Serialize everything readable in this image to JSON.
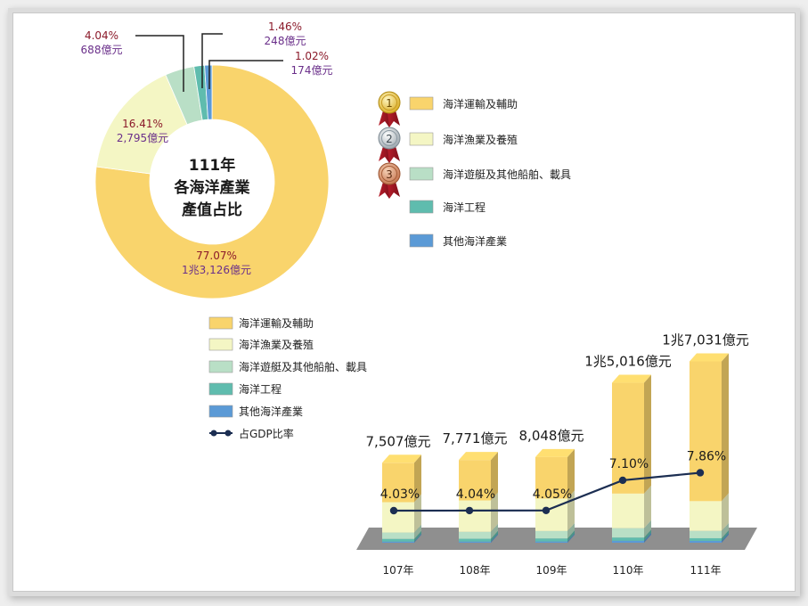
{
  "colors": {
    "transport": "#f9d46c",
    "fishery": "#f4f6c4",
    "yacht": "#b9dfc6",
    "engineering": "#5fbcae",
    "other": "#5b9ad6",
    "pct_label": "#8b1a2a",
    "val_label": "#6a2f8a",
    "line": "#1c2e52"
  },
  "pie": {
    "title": [
      "111年",
      "各海洋產業",
      "產值占比"
    ],
    "slice_labels": [
      {
        "pct": "77.07%",
        "val": "1兆3,126億元"
      },
      {
        "pct": "16.41%",
        "val": "2,795億元"
      },
      {
        "pct": "4.04%",
        "val": "688億元"
      },
      {
        "pct": "1.46%",
        "val": "248億元"
      },
      {
        "pct": "1.02%",
        "val": "174億元"
      }
    ]
  },
  "legend_top": {
    "items": [
      {
        "label": "海洋運輸及輔助",
        "medal": "1",
        "medal_icon": "gold-medal-icon"
      },
      {
        "label": "海洋漁業及養殖",
        "medal": "2",
        "medal_icon": "silver-medal-icon"
      },
      {
        "label": "海洋遊艇及其他船舶、載具",
        "medal": "3",
        "medal_icon": "bronze-medal-icon"
      },
      {
        "label": "海洋工程",
        "medal": "",
        "medal_icon": ""
      },
      {
        "label": "其他海洋產業",
        "medal": "",
        "medal_icon": ""
      }
    ]
  },
  "legend_bottom": {
    "items": [
      "海洋運輸及輔助",
      "海洋漁業及養殖",
      "海洋遊艇及其他船舶、載具",
      "海洋工程",
      "其他海洋產業"
    ],
    "line_label": "占GDP比率"
  },
  "bars": {
    "total_labels": [
      "7,507億元",
      "7,771億元",
      "8,048億元",
      "1兆5,016億元",
      "1兆7,031億元"
    ],
    "gdp_labels": [
      "4.03%",
      "4.04%",
      "4.05%",
      "7.10%",
      "7.86%"
    ]
  },
  "chart_data": [
    {
      "type": "pie",
      "title": "111年 各海洋產業 產值占比",
      "categories": [
        "海洋運輸及輔助",
        "海洋漁業及養殖",
        "海洋遊艇及其他船舶、載具",
        "海洋工程",
        "其他海洋產業"
      ],
      "values": [
        77.07,
        16.41,
        4.04,
        1.46,
        1.02
      ],
      "amounts_100m_ntd": [
        13126,
        2795,
        688,
        248,
        174
      ],
      "donut": true,
      "legend": "right"
    },
    {
      "type": "bar",
      "stacked": true,
      "categories": [
        "107年",
        "108年",
        "109年",
        "110年",
        "111年"
      ],
      "totals_100m_ntd": [
        7507,
        7771,
        8048,
        15016,
        17031
      ],
      "series": [
        {
          "name": "海洋運輸及輔助",
          "values": [
            3700,
            3800,
            3900,
            10400,
            13126
          ]
        },
        {
          "name": "海洋漁業及養殖",
          "values": [
            2850,
            2950,
            3050,
            3250,
            2795
          ]
        },
        {
          "name": "海洋遊艇及其他船舶、載具",
          "values": [
            600,
            650,
            700,
            880,
            688
          ]
        },
        {
          "name": "海洋工程",
          "values": [
            250,
            260,
            280,
            300,
            248
          ]
        },
        {
          "name": "其他海洋產業",
          "values": [
            107,
            111,
            118,
            186,
            174
          ]
        }
      ],
      "line_series": {
        "name": "占GDP比率",
        "values": [
          4.03,
          4.04,
          4.05,
          7.1,
          7.86
        ],
        "unit": "%"
      },
      "grid": false,
      "legend": "top-left"
    }
  ]
}
